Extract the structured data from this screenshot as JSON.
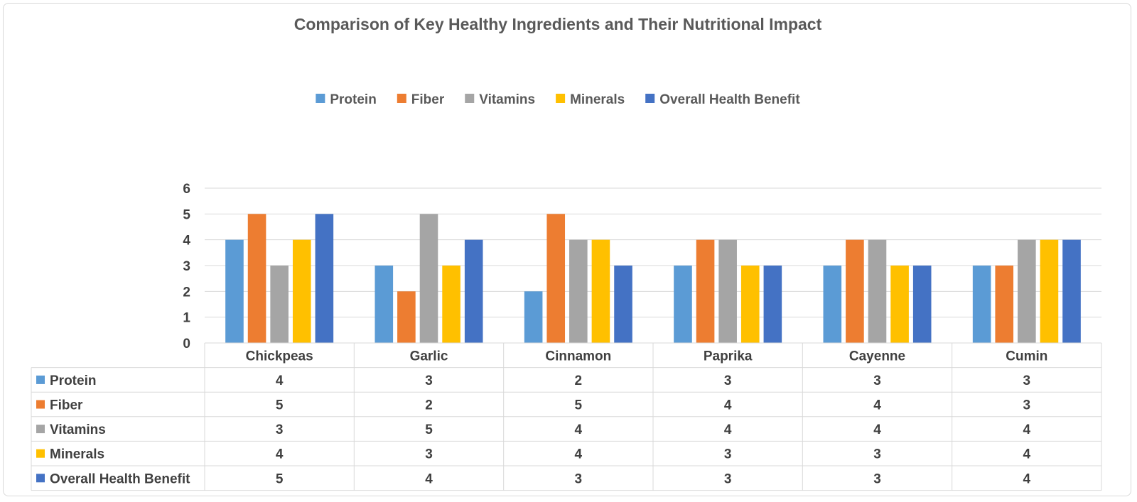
{
  "chart_data": {
    "type": "bar",
    "title": "Comparison of Key Healthy Ingredients and Their Nutritional Impact",
    "categories": [
      "Chickpeas",
      "Garlic",
      "Cinnamon",
      "Paprika",
      "Cayenne",
      "Cumin"
    ],
    "series": [
      {
        "name": "Protein",
        "color": "#5b9bd5",
        "values": [
          4,
          3,
          2,
          3,
          3,
          3
        ]
      },
      {
        "name": "Fiber",
        "color": "#ed7d31",
        "values": [
          5,
          2,
          5,
          4,
          4,
          3
        ]
      },
      {
        "name": "Vitamins",
        "color": "#a5a5a5",
        "values": [
          3,
          5,
          4,
          4,
          4,
          4
        ]
      },
      {
        "name": "Minerals",
        "color": "#ffc000",
        "values": [
          4,
          3,
          4,
          3,
          3,
          4
        ]
      },
      {
        "name": "Overall Health Benefit",
        "color": "#4472c4",
        "values": [
          5,
          4,
          3,
          3,
          3,
          4
        ]
      }
    ],
    "ylim": [
      0,
      6
    ],
    "yticks": [
      0,
      1,
      2,
      3,
      4,
      5,
      6
    ],
    "xlabel": "",
    "ylabel": "",
    "grid": true,
    "legend_position": "top",
    "data_table": true
  }
}
